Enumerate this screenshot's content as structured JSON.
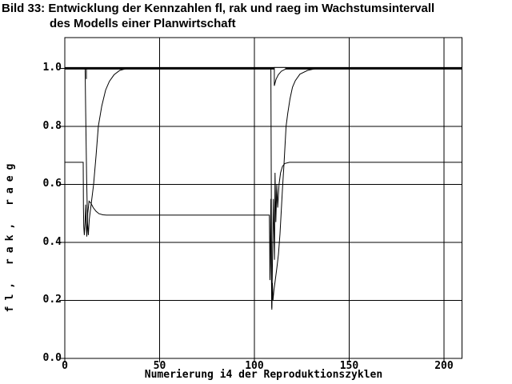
{
  "figure": {
    "title_line1": "Bild 33: Entwicklung der Kennzahlen fl, rak und raeg im Wachstumsintervall",
    "title_line2": "des Modells einer Planwirtschaft"
  },
  "chart_data": {
    "type": "line",
    "title": "Bild 33: Entwicklung der Kennzahlen fl, rak und raeg im Wachstumsintervall des Modells einer Planwirtschaft",
    "xlabel": "Numerierung i4 der Reproduktionszyklen",
    "ylabel": "fl, rak, raeg",
    "xlim": [
      0,
      209.5
    ],
    "ylim": [
      0,
      1.106
    ],
    "grid": true,
    "legend": "none",
    "line_color": "#000000",
    "background_color": "#ffffff",
    "x_ticks": [
      {
        "value": 0,
        "label": "0"
      },
      {
        "value": 50,
        "label": "50"
      },
      {
        "value": 100,
        "label": "100"
      },
      {
        "value": 150,
        "label": "150"
      },
      {
        "value": 200,
        "label": "200"
      }
    ],
    "y_ticks": [
      {
        "value": 0.0,
        "label": "0.0"
      },
      {
        "value": 0.2,
        "label": "0.2"
      },
      {
        "value": 0.4,
        "label": "0.4"
      },
      {
        "value": 0.6,
        "label": "0.6"
      },
      {
        "value": 0.8,
        "label": "0.8"
      },
      {
        "value": 1.0,
        "label": "1.0"
      }
    ],
    "series": [
      {
        "name": "fl",
        "style": "thick-notched",
        "stroke_width": 3,
        "baseline": 1.0,
        "points": [
          [
            0,
            1
          ],
          [
            9.6,
            1
          ],
          [
            11.4,
            0.963
          ],
          [
            13.2,
            1
          ],
          [
            109.4,
            1
          ],
          [
            110.5,
            0.94
          ],
          [
            111.4,
            0.962
          ],
          [
            112.6,
            0.978
          ],
          [
            114.2,
            0.99
          ],
          [
            116.5,
            0.998
          ],
          [
            120.5,
            1
          ],
          [
            209.5,
            1
          ]
        ]
      },
      {
        "name": "rak",
        "style": "thin",
        "stroke_width": 1,
        "points": [
          [
            0,
            1
          ],
          [
            10.7,
            1
          ],
          [
            11.0,
            0.85
          ],
          [
            11.5,
            0.62
          ],
          [
            12.0,
            0.47
          ],
          [
            12.4,
            0.425
          ],
          [
            12.9,
            0.48
          ],
          [
            13.9,
            0.53
          ],
          [
            15.2,
            0.6
          ],
          [
            16.5,
            0.7
          ],
          [
            17.7,
            0.8
          ],
          [
            19.5,
            0.87
          ],
          [
            21.5,
            0.925
          ],
          [
            23.5,
            0.955
          ],
          [
            26,
            0.978
          ],
          [
            29,
            0.993
          ],
          [
            33,
            1.0
          ],
          [
            108.7,
            1.0
          ],
          [
            108.9,
            0.6
          ],
          [
            109.05,
            0.3
          ],
          [
            109.2,
            0.168
          ],
          [
            109.5,
            0.26
          ],
          [
            109.8,
            0.2
          ],
          [
            110.3,
            0.235
          ],
          [
            111,
            0.27
          ],
          [
            111.9,
            0.315
          ],
          [
            112.7,
            0.36
          ],
          [
            113.5,
            0.43
          ],
          [
            114.1,
            0.5
          ],
          [
            114.8,
            0.585
          ],
          [
            115.6,
            0.67
          ],
          [
            116.7,
            0.8
          ],
          [
            117.6,
            0.845
          ],
          [
            118.8,
            0.895
          ],
          [
            120.1,
            0.935
          ],
          [
            121.6,
            0.958
          ],
          [
            124,
            0.98
          ],
          [
            128,
            0.993
          ],
          [
            133,
            1.0
          ],
          [
            209.5,
            1.0
          ]
        ]
      },
      {
        "name": "raeg",
        "style": "thin",
        "stroke_width": 1,
        "points": [
          [
            0,
            0.676
          ],
          [
            9.7,
            0.676
          ],
          [
            9.85,
            0.52
          ],
          [
            10.0,
            0.455
          ],
          [
            10.3,
            0.425
          ],
          [
            10.7,
            0.47
          ],
          [
            11.0,
            0.53
          ],
          [
            11.3,
            0.46
          ],
          [
            11.6,
            0.42
          ],
          [
            12.1,
            0.5
          ],
          [
            12.8,
            0.542
          ],
          [
            13.8,
            0.535
          ],
          [
            15,
            0.52
          ],
          [
            16.5,
            0.507
          ],
          [
            18,
            0.499
          ],
          [
            20,
            0.495
          ],
          [
            22,
            0.494
          ],
          [
            107.9,
            0.494
          ],
          [
            108.05,
            0.4
          ],
          [
            108.2,
            0.27
          ],
          [
            108.4,
            0.33
          ],
          [
            108.55,
            0.47
          ],
          [
            108.7,
            0.55
          ],
          [
            108.85,
            0.42
          ],
          [
            109.0,
            0.28
          ],
          [
            109.15,
            0.174
          ],
          [
            109.4,
            0.28
          ],
          [
            109.7,
            0.42
          ],
          [
            110.0,
            0.55
          ],
          [
            110.3,
            0.44
          ],
          [
            110.6,
            0.34
          ],
          [
            110.9,
            0.64
          ],
          [
            111.3,
            0.47
          ],
          [
            111.8,
            0.6
          ],
          [
            112.3,
            0.52
          ],
          [
            113.0,
            0.6
          ],
          [
            113.8,
            0.64
          ],
          [
            114.8,
            0.662
          ],
          [
            116,
            0.672
          ],
          [
            118.5,
            0.676
          ],
          [
            209.5,
            0.676
          ]
        ]
      }
    ]
  }
}
